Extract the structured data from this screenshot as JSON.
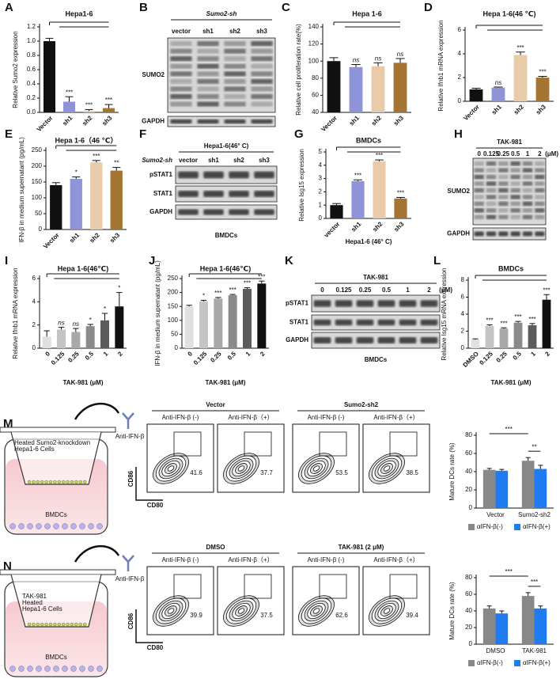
{
  "chart_data": [
    {
      "panel": "A",
      "type": "bar",
      "title": "Hepa1-6",
      "ylabel": "Relative Sumo2 expression",
      "categories": [
        "Vector",
        "sh1",
        "sh2",
        "sh3"
      ],
      "values": [
        1.0,
        0.15,
        0.02,
        0.06
      ],
      "errors": [
        0.04,
        0.07,
        0.02,
        0.05
      ],
      "significance": [
        null,
        "***",
        "***",
        "***"
      ],
      "colors": [
        "#111111",
        "#8f93d8",
        "#e9cba9",
        "#a47433"
      ],
      "ylim": [
        0,
        1.2
      ],
      "yticks": [
        {
          "value": 0,
          "label": "0.0"
        },
        0.2,
        0.4,
        0.6,
        0.8,
        {
          "value": 1,
          "label": "1.0"
        },
        1.2
      ]
    },
    {
      "panel": "C",
      "type": "bar",
      "title": "Hepa 1-6",
      "ylabel": "Relative cell proliferation rate(%)",
      "categories": [
        "Vector",
        "sh1",
        "sh2",
        "sh3"
      ],
      "values": [
        100,
        93,
        94,
        98
      ],
      "errors": [
        4,
        3,
        4,
        5
      ],
      "significance": [
        null,
        "ns",
        "ns",
        "ns"
      ],
      "colors": [
        "#111111",
        "#8f93d8",
        "#e9cba9",
        "#a47433"
      ],
      "ylim": [
        40,
        140
      ],
      "yticks": [
        40,
        60,
        80,
        100,
        120,
        140
      ]
    },
    {
      "panel": "D",
      "type": "bar",
      "title": "Hepa 1-6(46 ℃)",
      "ylabel": "Relative Ifnb1 mRNA expression",
      "categories": [
        "Vector",
        "sh1",
        "sh2",
        "sh3"
      ],
      "values": [
        1.0,
        1.15,
        3.9,
        2.0
      ],
      "errors": [
        0.1,
        0.05,
        0.25,
        0.1
      ],
      "significance": [
        null,
        "ns",
        "***",
        "***"
      ],
      "colors": [
        "#111111",
        "#8f93d8",
        "#e9cba9",
        "#a47433"
      ],
      "ylim": [
        0,
        6
      ],
      "yticks": [
        0,
        2,
        4,
        6
      ]
    },
    {
      "panel": "E",
      "type": "bar",
      "title": "Hepa 1-6（46 ℃）",
      "ylabel": "IFN-β in medium supernatant (pg/mL)",
      "categories": [
        "Vector",
        "sh1",
        "sh2",
        "sh3"
      ],
      "values": [
        140,
        160,
        212,
        186
      ],
      "errors": [
        8,
        6,
        6,
        10
      ],
      "significance": [
        null,
        "*",
        "***",
        "**"
      ],
      "colors": [
        "#111111",
        "#8f93d8",
        "#e9cba9",
        "#a47433"
      ],
      "ylim": [
        0,
        250
      ],
      "yticks": [
        0,
        50,
        100,
        150,
        200,
        250
      ]
    },
    {
      "panel": "G",
      "type": "bar",
      "title": "BMDCs",
      "ylabel": "Relative Isg15 expression",
      "xlabel": "Hepa1-6 (46° C)",
      "categories": [
        "vector",
        "sh1",
        "sh2",
        "sh3"
      ],
      "values": [
        1.0,
        2.8,
        4.3,
        1.5
      ],
      "errors": [
        0.12,
        0.1,
        0.1,
        0.08
      ],
      "significance": [
        null,
        "***",
        "***",
        "***"
      ],
      "colors": [
        "#111111",
        "#8f93d8",
        "#e9cba9",
        "#a47433"
      ],
      "ylim": [
        0,
        5
      ],
      "yticks": [
        0,
        1,
        2,
        3,
        4,
        5
      ]
    },
    {
      "panel": "I",
      "type": "bar",
      "title": "Hepa 1-6(46℃)",
      "ylabel": "Relative Ifnb1 mRNA expression",
      "xlabel": "TAK-981 (μM)",
      "categories": [
        "0",
        "0.125",
        "0.25",
        "0.5",
        "1",
        "2"
      ],
      "values": [
        1.0,
        1.6,
        1.4,
        1.9,
        2.4,
        3.6
      ],
      "errors": [
        0.5,
        0.2,
        0.3,
        0.15,
        0.6,
        1.2
      ],
      "significance": [
        null,
        "ns",
        "ns",
        "*",
        "*",
        "*"
      ],
      "colors": [
        "#e0e0e0",
        "#c4c4c4",
        "#a8a8a8",
        "#8a8a8a",
        "#5c5c5c",
        "#111111"
      ],
      "ylim": [
        0,
        6
      ],
      "yticks": [
        0,
        2,
        4,
        6
      ]
    },
    {
      "panel": "J",
      "type": "bar",
      "title": "Hepa 1-6(46℃)",
      "ylabel": "IFN-β in medium supernatant (pg/mL)",
      "xlabel": "TAK-981 (μM)",
      "categories": [
        "0",
        "0.125",
        "0.25",
        "0.5",
        "1",
        "2"
      ],
      "values": [
        150,
        168,
        178,
        190,
        213,
        232
      ],
      "errors": [
        4,
        4,
        4,
        3,
        4,
        9
      ],
      "significance": [
        null,
        "*",
        "***",
        "***",
        "***",
        "***"
      ],
      "colors": [
        "#e0e0e0",
        "#c4c4c4",
        "#a8a8a8",
        "#8a8a8a",
        "#5c5c5c",
        "#111111"
      ],
      "ylim": [
        0,
        250
      ],
      "yticks": [
        0,
        50,
        100,
        150,
        200,
        250
      ]
    },
    {
      "panel": "L",
      "type": "bar",
      "title": "BMDCs",
      "ylabel": "Relative Isg15 mRNA expression",
      "xlabel": "TAK-981 (μM)",
      "categories": [
        "DMSO",
        "0.125",
        "0.25",
        "0.5",
        "1",
        "2"
      ],
      "values": [
        1.0,
        2.6,
        2.3,
        3.0,
        2.7,
        5.7
      ],
      "errors": [
        0.1,
        0.15,
        0.1,
        0.15,
        0.2,
        0.6
      ],
      "significance": [
        null,
        "***",
        "***",
        "***",
        "***",
        "***"
      ],
      "colors": [
        "#e0e0e0",
        "#c4c4c4",
        "#a8a8a8",
        "#8a8a8a",
        "#5c5c5c",
        "#111111"
      ],
      "ylim": [
        0,
        8
      ],
      "yticks": [
        0,
        2,
        4,
        6,
        8
      ]
    },
    {
      "type": "bar",
      "ylabel": "Mature DCs rate (%)",
      "categories": [
        "Vector",
        "Sumo2-sh2"
      ],
      "series": [
        {
          "name": "αIFN-β(-)",
          "color": "#888888",
          "values": [
            42,
            52
          ],
          "errors": [
            1.5,
            3.5
          ]
        },
        {
          "name": "αIFN-β(+)",
          "color": "#1e7bf0",
          "values": [
            41,
            43
          ],
          "errors": [
            1.5,
            4
          ]
        }
      ],
      "annotations": [
        "***",
        "**"
      ],
      "ylim": [
        0,
        80
      ],
      "yticks": [
        0,
        20,
        40,
        60,
        80
      ],
      "legend": "bottom"
    },
    {
      "type": "bar",
      "ylabel": "Mature DCs rate (%)",
      "categories": [
        "DMSO",
        "TAK-981"
      ],
      "series": [
        {
          "name": "αIFN-β(-)",
          "color": "#888888",
          "values": [
            43,
            58
          ],
          "errors": [
            3,
            4
          ]
        },
        {
          "name": "αIFN-β(+)",
          "color": "#1e7bf0",
          "values": [
            37,
            43
          ],
          "errors": [
            3,
            3
          ]
        }
      ],
      "annotations": [
        "***",
        "***"
      ],
      "ylim": [
        0,
        80
      ],
      "yticks": [
        0,
        20,
        40,
        60,
        80
      ],
      "legend": "bottom"
    }
  ],
  "blots": [
    {
      "panel": "B",
      "header": "Sumo2-sh",
      "lanes": [
        "vector",
        "sh1",
        "sh2",
        "sh3"
      ],
      "rows": [
        "SUMO2",
        "GAPDH"
      ]
    },
    {
      "panel": "F",
      "header": "Hepa1-6(46° C)",
      "group_label": "Sumo2-sh",
      "lanes": [
        "vector",
        "sh1",
        "sh2",
        "sh3"
      ],
      "rows": [
        "pSTAT1",
        "STAT1",
        "GAPDH"
      ],
      "footer": "BMDCs"
    },
    {
      "panel": "H",
      "header": "TAK-981",
      "lanes": [
        "0",
        "0.125",
        "0.25",
        "0.5",
        "1",
        "2"
      ],
      "unit": "(μM)",
      "rows": [
        "SUMO2",
        "GAPDH"
      ]
    },
    {
      "panel": "K",
      "header": "TAK-981",
      "lanes": [
        "0",
        "0.125",
        "0.25",
        "0.5",
        "1",
        "2"
      ],
      "unit": "(μM)",
      "rows": [
        "pSTAT1",
        "STAT1",
        "GAPDH"
      ],
      "footer": "BMDCs"
    }
  ],
  "experiments": [
    {
      "panel": "M",
      "schematic": {
        "cells": [
          "Heated Sumo2-knockdown",
          "Hepa1-6 Cells"
        ],
        "bottom": "BMDCs",
        "antibody": "Anti-IFN-β"
      },
      "groups": [
        "Vector",
        "Sumo2-sh2"
      ],
      "conditions": [
        "Anti-IFN-β (-)",
        "Anti-IFN-β（+）",
        "Anti-IFN-β (-)",
        "Anti-IFN-β（+）"
      ],
      "gates": [
        41.6,
        37.7,
        53.5,
        38.5
      ],
      "y_axis": "CD86",
      "x_axis": "CD80"
    },
    {
      "panel": "N",
      "schematic": {
        "cells": [
          "TAK-981",
          "Heated",
          "Hepa1-6 Cells"
        ],
        "bottom": "BMDCs",
        "antibody": "Anti-IFN-β"
      },
      "groups": [
        "DMSO",
        "TAK-981 (2 μM)"
      ],
      "conditions": [
        "Anti-IFN-β (-)",
        "Anti-IFN-β（+）",
        "Anti-IFN-β (-)",
        "Anti-IFN-β（+）"
      ],
      "gates": [
        39.9,
        37.5,
        62.6,
        39.4
      ],
      "y_axis": "CD86",
      "x_axis": "CD80"
    }
  ]
}
